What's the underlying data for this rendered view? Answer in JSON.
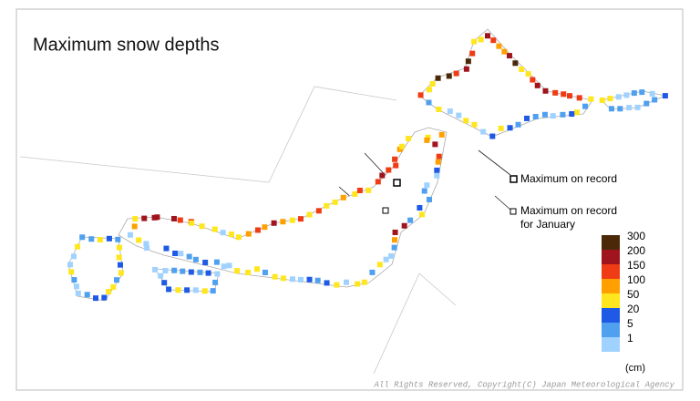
{
  "title": "Maximum snow depths",
  "annotations": {
    "record": "Maximum on record",
    "january": [
      "Maximum on record",
      "for January"
    ]
  },
  "legend": {
    "items": [
      {
        "label": "300",
        "color": "#4a2808"
      },
      {
        "label": "200",
        "color": "#a0141e"
      },
      {
        "label": "150",
        "color": "#f03c14"
      },
      {
        "label": "100",
        "color": "#ffa000"
      },
      {
        "label": "50",
        "color": "#ffe61e"
      },
      {
        "label": "20",
        "color": "#1e5ae6"
      },
      {
        "label": "5",
        "color": "#50a0f0"
      },
      {
        "label": "1",
        "color": "#a0d2ff"
      }
    ],
    "unit": "(cm)"
  },
  "copyright": "All Rights Reserved, Copyright(C) Japan Meteorological Agency"
}
